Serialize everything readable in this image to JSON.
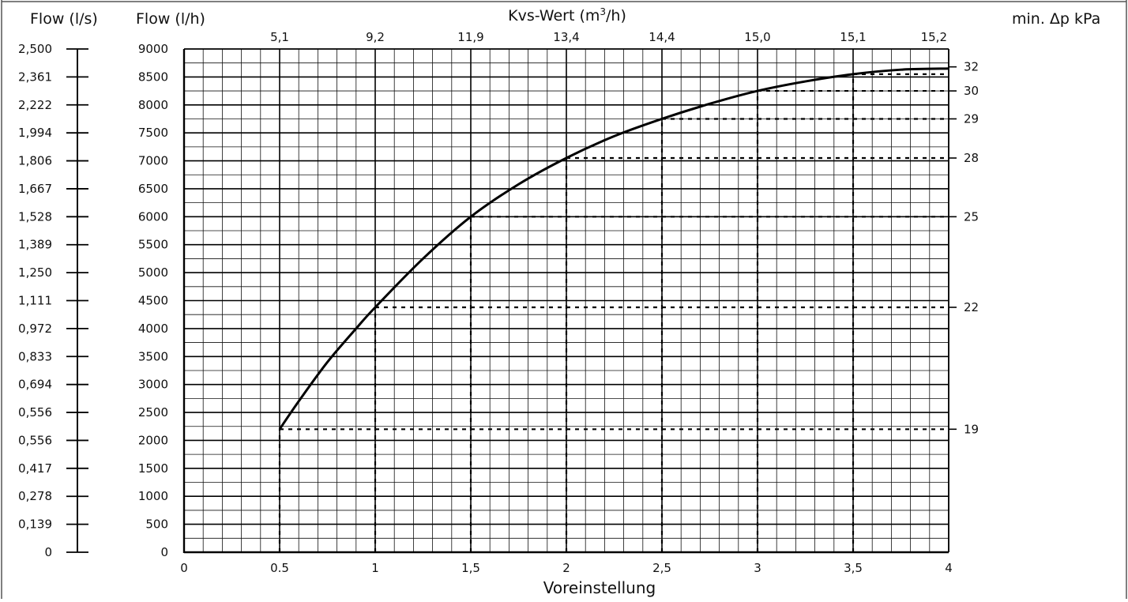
{
  "chart_data": {
    "type": "line",
    "title": "",
    "left_axes": [
      {
        "label": "Flow (l/s)",
        "ticks": [
          "2,500",
          "2,361",
          "2,222",
          "1,994",
          "1,806",
          "1,667",
          "1,528",
          "1,389",
          "1,250",
          "1,111",
          "0,972",
          "0,833",
          "0,694",
          "0,556",
          "0,556",
          "0,417",
          "0,278",
          "0,139",
          "0"
        ]
      },
      {
        "label": "Flow (l/h)",
        "ticks": [
          "9000",
          "8500",
          "8000",
          "7500",
          "7000",
          "6500",
          "6000",
          "5500",
          "5000",
          "4500",
          "4000",
          "3500",
          "3000",
          "2500",
          "2000",
          "1500",
          "1000",
          "500",
          "0"
        ],
        "ylim": [
          0,
          9000
        ]
      }
    ],
    "xlabel": "Voreinstellung",
    "x_ticks": [
      "0",
      "0.5",
      "1",
      "1,5",
      "2",
      "2,5",
      "3",
      "3,5",
      "4"
    ],
    "xlim": [
      0,
      4
    ],
    "top_axis": {
      "label_prefix": "Kvs-Wert (m",
      "label_sup": "3",
      "label_suffix": "/h)",
      "ticks": [
        "5,1",
        "9,2",
        "11,9",
        "13,4",
        "14,4",
        "15,0",
        "15,1",
        "15,2"
      ]
    },
    "right_axis": {
      "label": "min. Δp kPa",
      "ticks": [
        {
          "label": "32",
          "flow": 8680
        },
        {
          "label": "30",
          "flow": 8250
        },
        {
          "label": "29",
          "flow": 7750
        },
        {
          "label": "28",
          "flow": 7050
        },
        {
          "label": "25",
          "flow": 6000
        },
        {
          "label": "22",
          "flow": 4380
        },
        {
          "label": "19",
          "flow": 2200
        }
      ]
    },
    "series": [
      {
        "x": [
          0.5,
          0.6,
          0.75,
          0.9,
          1.0,
          1.25,
          1.5,
          1.75,
          2.0,
          2.25,
          2.5,
          2.75,
          3.0,
          3.25,
          3.5,
          3.75,
          4.0
        ],
        "y": [
          2200,
          2700,
          3400,
          4000,
          4380,
          5250,
          6000,
          6580,
          7050,
          7440,
          7750,
          8020,
          8250,
          8420,
          8550,
          8630,
          8650
        ]
      }
    ],
    "setpoints": [
      {
        "x": 0.5,
        "flow": 2200
      },
      {
        "x": 1.0,
        "flow": 4380
      },
      {
        "x": 1.5,
        "flow": 6000
      },
      {
        "x": 2.0,
        "flow": 7050
      },
      {
        "x": 2.5,
        "flow": 7750
      },
      {
        "x": 3.0,
        "flow": 8250
      },
      {
        "x": 3.5,
        "flow": 8550
      }
    ],
    "grid": true
  }
}
